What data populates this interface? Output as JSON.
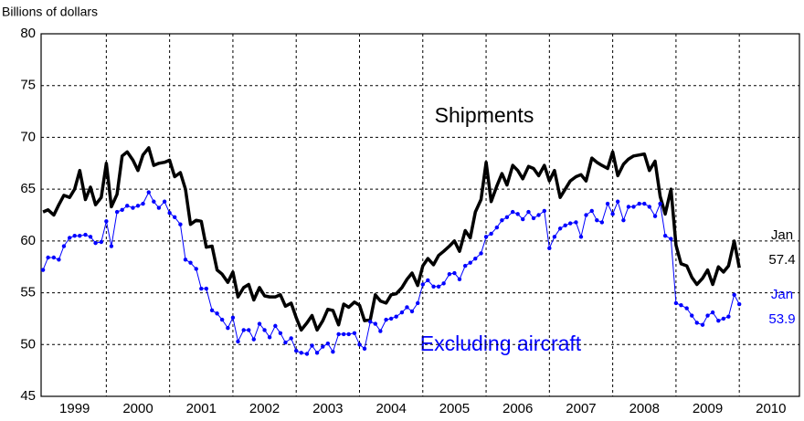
{
  "chart_data": {
    "type": "line",
    "y_axis_label": "Billions of dollars",
    "x": [
      1999,
      1999.08,
      1999.17,
      1999.25,
      1999.33,
      1999.42,
      1999.5,
      1999.58,
      1999.67,
      1999.75,
      1999.83,
      1999.92,
      2000,
      2000.08,
      2000.17,
      2000.25,
      2000.33,
      2000.42,
      2000.5,
      2000.58,
      2000.67,
      2000.75,
      2000.83,
      2000.92,
      2001,
      2001.08,
      2001.17,
      2001.25,
      2001.33,
      2001.42,
      2001.5,
      2001.58,
      2001.67,
      2001.75,
      2001.83,
      2001.92,
      2002,
      2002.08,
      2002.17,
      2002.25,
      2002.33,
      2002.42,
      2002.5,
      2002.58,
      2002.67,
      2002.75,
      2002.83,
      2002.92,
      2003,
      2003.08,
      2003.17,
      2003.25,
      2003.33,
      2003.42,
      2003.5,
      2003.58,
      2003.67,
      2003.75,
      2003.83,
      2003.92,
      2004,
      2004.08,
      2004.17,
      2004.25,
      2004.33,
      2004.42,
      2004.5,
      2004.58,
      2004.67,
      2004.75,
      2004.83,
      2004.92,
      2005,
      2005.08,
      2005.17,
      2005.25,
      2005.33,
      2005.42,
      2005.5,
      2005.58,
      2005.67,
      2005.75,
      2005.83,
      2005.92,
      2006,
      2006.08,
      2006.17,
      2006.25,
      2006.33,
      2006.42,
      2006.5,
      2006.58,
      2006.67,
      2006.75,
      2006.83,
      2006.92,
      2007,
      2007.08,
      2007.17,
      2007.25,
      2007.33,
      2007.42,
      2007.5,
      2007.58,
      2007.67,
      2007.75,
      2007.83,
      2007.92,
      2008,
      2008.08,
      2008.17,
      2008.25,
      2008.33,
      2008.42,
      2008.5,
      2008.58,
      2008.67,
      2008.75,
      2008.83,
      2008.92,
      2009,
      2009.08,
      2009.17,
      2009.25,
      2009.33,
      2009.42,
      2009.5,
      2009.58,
      2009.67,
      2009.75,
      2009.83,
      2009.92,
      2010
    ],
    "series": [
      {
        "name": "Shipments",
        "color": "#000000",
        "end_label": "Jan",
        "values": [
          62.8,
          63.0,
          62.5,
          63.5,
          64.4,
          64.2,
          65.0,
          66.8,
          64.0,
          65.2,
          63.5,
          64.2,
          67.5,
          63.3,
          64.5,
          68.2,
          68.6,
          67.8,
          66.8,
          68.3,
          69.0,
          67.3,
          67.5,
          67.6,
          67.8,
          66.2,
          66.6,
          65.0,
          61.6,
          62.0,
          61.9,
          59.4,
          59.5,
          57.2,
          56.8,
          56.0,
          57.0,
          54.6,
          55.5,
          55.8,
          54.3,
          55.5,
          54.7,
          54.6,
          54.6,
          54.8,
          53.7,
          54.0,
          52.6,
          51.4,
          52.1,
          52.8,
          51.4,
          52.3,
          53.4,
          53.3,
          51.9,
          53.9,
          53.6,
          54.1,
          53.8,
          52.3,
          52.4,
          54.8,
          54.2,
          54.0,
          54.8,
          54.9,
          55.5,
          56.3,
          56.9,
          55.7,
          57.6,
          58.3,
          57.7,
          58.6,
          59.0,
          59.5,
          60.0,
          59.0,
          61.0,
          60.3,
          62.8,
          64.0,
          67.6,
          63.8,
          65.3,
          66.5,
          65.4,
          67.3,
          66.8,
          66.0,
          67.2,
          67.0,
          66.3,
          67.3,
          65.8,
          66.8,
          64.2,
          65.0,
          65.8,
          66.2,
          66.4,
          65.8,
          68.0,
          67.6,
          67.3,
          67.0,
          68.6,
          66.3,
          67.4,
          67.9,
          68.2,
          68.3,
          68.4,
          66.8,
          67.7,
          64.3,
          62.6,
          65.0,
          59.6,
          57.8,
          57.6,
          56.5,
          55.8,
          56.4,
          57.2,
          55.8,
          57.5,
          57.0,
          57.6,
          60.0,
          57.4
        ]
      },
      {
        "name": "Excluding aircraft",
        "color": "#0000ff",
        "end_label": "Jan",
        "values": [
          57.2,
          58.4,
          58.4,
          58.2,
          59.5,
          60.3,
          60.5,
          60.5,
          60.6,
          60.4,
          59.8,
          59.9,
          61.9,
          59.5,
          62.8,
          63.0,
          63.4,
          63.2,
          63.4,
          63.6,
          64.7,
          63.8,
          63.2,
          63.8,
          62.7,
          62.3,
          61.6,
          58.2,
          57.9,
          57.3,
          55.4,
          55.4,
          53.3,
          53.0,
          52.4,
          51.6,
          52.6,
          50.3,
          51.4,
          51.4,
          50.5,
          52.0,
          51.4,
          50.7,
          51.8,
          51.1,
          50.2,
          50.6,
          49.4,
          49.2,
          49.1,
          49.9,
          49.2,
          49.8,
          50.1,
          49.3,
          51.0,
          51.0,
          51.0,
          51.1,
          50.0,
          49.6,
          52.2,
          52.0,
          51.3,
          52.4,
          52.5,
          52.7,
          53.1,
          53.6,
          53.2,
          54.0,
          55.8,
          56.2,
          55.6,
          55.6,
          55.9,
          56.8,
          56.9,
          56.3,
          57.6,
          57.9,
          58.3,
          58.8,
          60.4,
          60.7,
          61.3,
          62.0,
          62.3,
          62.8,
          62.6,
          62.1,
          62.8,
          62.2,
          62.5,
          62.9,
          59.3,
          60.4,
          61.2,
          61.5,
          61.7,
          61.8,
          60.4,
          62.5,
          62.9,
          62.0,
          61.8,
          63.6,
          62.6,
          63.8,
          62.0,
          63.3,
          63.3,
          63.6,
          63.6,
          63.3,
          62.4,
          63.6,
          60.5,
          60.2,
          54.0,
          53.8,
          53.5,
          52.8,
          52.1,
          51.9,
          52.8,
          53.1,
          52.3,
          52.5,
          52.7,
          54.8,
          53.9
        ]
      }
    ],
    "xlim": [
      1998.97,
      2010.95
    ],
    "xticks": [
      {
        "value": 1999.5,
        "label": "1999"
      },
      {
        "value": 2000.5,
        "label": "2000"
      },
      {
        "value": 2001.5,
        "label": "2001"
      },
      {
        "value": 2002.5,
        "label": "2002"
      },
      {
        "value": 2003.5,
        "label": "2003"
      },
      {
        "value": 2004.5,
        "label": "2004"
      },
      {
        "value": 2005.5,
        "label": "2005"
      },
      {
        "value": 2006.5,
        "label": "2006"
      },
      {
        "value": 2007.5,
        "label": "2007"
      },
      {
        "value": 2008.5,
        "label": "2008"
      },
      {
        "value": 2009.5,
        "label": "2009"
      },
      {
        "value": 2010.5,
        "label": "2010"
      }
    ],
    "xgrid": [
      2000,
      2001,
      2002,
      2003,
      2004,
      2005,
      2006,
      2007,
      2008,
      2009,
      2010
    ],
    "ylim": [
      45,
      80
    ],
    "yticks": [
      45,
      50,
      55,
      60,
      65,
      70,
      75,
      80
    ],
    "grid": true
  }
}
